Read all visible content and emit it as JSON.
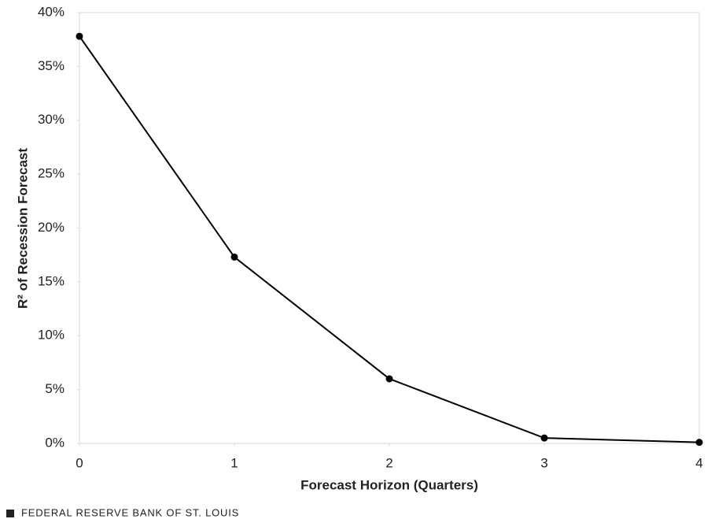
{
  "chart_data": {
    "type": "line",
    "x_label": "Forecast Horizon (Quarters)",
    "y_label": "R² of Recession Forecast",
    "source": "FEDERAL RESERVE BANK OF ST. LOUIS",
    "x": [
      0,
      1,
      2,
      3,
      4
    ],
    "series": [
      {
        "color": "#000000",
        "values": [
          37.8,
          17.3,
          6.0,
          0.5,
          0.1
        ]
      }
    ],
    "xlim": [
      0,
      4
    ],
    "xticks": [
      0,
      1,
      2,
      3,
      4
    ],
    "ylim": [
      0,
      40
    ],
    "yticks": [
      {
        "value": 0,
        "label": "0%"
      },
      {
        "value": 5,
        "label": "5%"
      },
      {
        "value": 10,
        "label": "10%"
      },
      {
        "value": 15,
        "label": "15%"
      },
      {
        "value": 20,
        "label": "20%"
      },
      {
        "value": 25,
        "label": "25%"
      },
      {
        "value": 30,
        "label": "30%"
      },
      {
        "value": 35,
        "label": "35%"
      },
      {
        "value": 40,
        "label": "40%"
      }
    ],
    "grid": false
  }
}
